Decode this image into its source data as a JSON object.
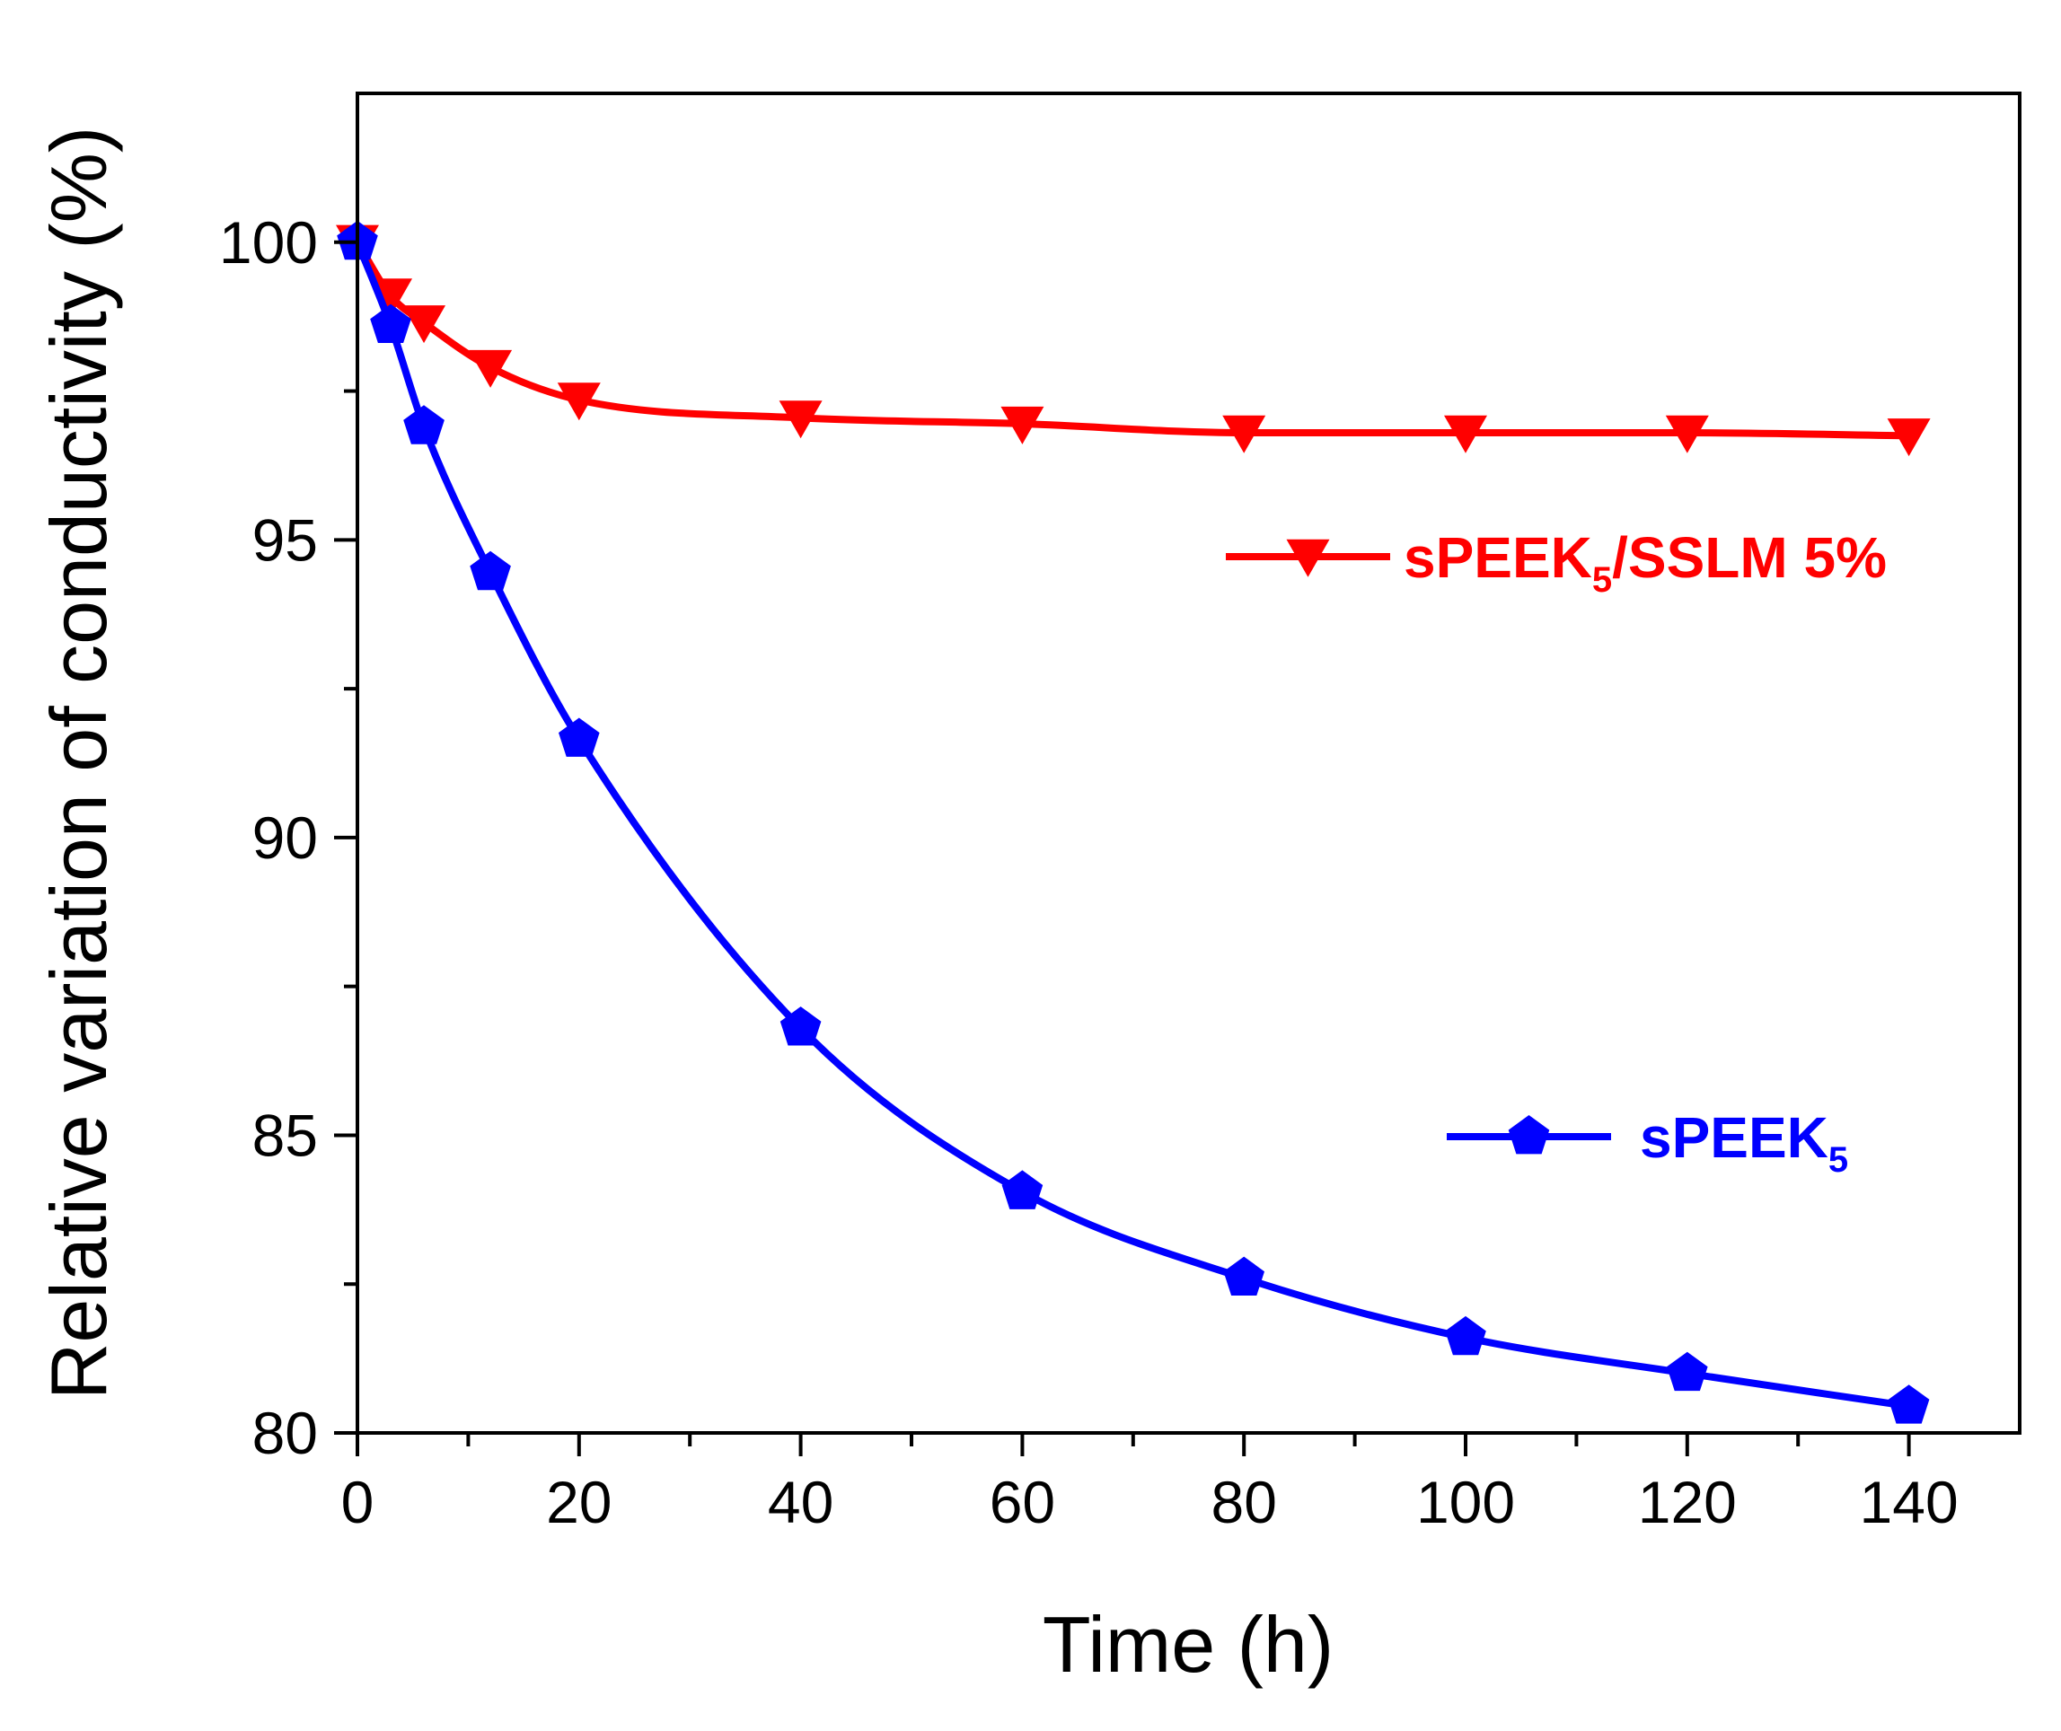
{
  "chart_data": {
    "type": "line",
    "title": "",
    "xlabel": "Time (h)",
    "ylabel": "Relative variation of conductivity (%)",
    "xlim": [
      0,
      150
    ],
    "ylim": [
      80,
      102.5
    ],
    "xticks": [
      0,
      20,
      40,
      60,
      80,
      100,
      120,
      140
    ],
    "xtick_labels": [
      "0",
      "20",
      "40",
      "60",
      "80",
      "100",
      "120",
      "140"
    ],
    "yticks": [
      80,
      85,
      90,
      95,
      100
    ],
    "ytick_labels": [
      "80",
      "85",
      "90",
      "95",
      "100"
    ],
    "x_minor_step": 10,
    "y_minor_step": 2.5,
    "grid": false,
    "legend_placement": "inline-right",
    "series": [
      {
        "name": "sPEEK5/SSLM 5%",
        "legend_main": "sPEEK",
        "legend_sub": "5",
        "legend_rest": "/SSLM 5%",
        "color": "#ff0000",
        "marker": "triangle-down",
        "x": [
          0,
          3,
          6,
          12,
          20,
          40,
          60,
          80,
          100,
          120,
          140
        ],
        "values": [
          100,
          99.1,
          98.65,
          97.9,
          97.35,
          97.05,
          96.95,
          96.8,
          96.8,
          96.8,
          96.75
        ]
      },
      {
        "name": "sPEEK5",
        "legend_main": "sPEEK",
        "legend_sub": "5",
        "legend_rest": "",
        "color": "#0000ff",
        "marker": "pentagon",
        "x": [
          0,
          3,
          6,
          12,
          20,
          40,
          60,
          80,
          100,
          120,
          140
        ],
        "values": [
          100,
          98.6,
          96.9,
          94.45,
          91.65,
          86.8,
          84.05,
          82.6,
          81.6,
          81.0,
          80.45
        ]
      }
    ]
  }
}
